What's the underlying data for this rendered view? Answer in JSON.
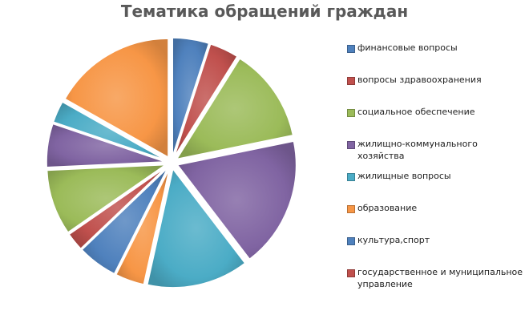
{
  "chart_data": {
    "type": "pie",
    "title": "Тематика обращений граждан",
    "exploded": true,
    "legend_position": "right",
    "start_angle_deg": 90,
    "series": [
      {
        "name": "финансовые вопросы",
        "color": "#4f81bd"
      },
      {
        "name": "вопросы здравоохранения",
        "color": "#c0504d"
      },
      {
        "name": "социальное обеспечение",
        "color": "#9bbb59"
      },
      {
        "name": "жилищно-коммунального хозяйства",
        "color": "#8064a2"
      },
      {
        "name": "жилищные вопросы",
        "color": "#4bacc6"
      },
      {
        "name": "образование",
        "color": "#f79646"
      },
      {
        "name": "культура,спорт",
        "color": "#4f81bd"
      },
      {
        "name": "государственное и муниципальное управление",
        "color": "#c0504d"
      }
    ],
    "slices": [
      {
        "series": 0,
        "value": 5
      },
      {
        "series": 1,
        "value": 4
      },
      {
        "series": 2,
        "value": 13
      },
      {
        "series": 3,
        "value": 18
      },
      {
        "series": 4,
        "value": 14
      },
      {
        "series": 5,
        "value": 4
      },
      {
        "series": 6,
        "value": 5.5
      },
      {
        "series": 7,
        "value": 2.5
      },
      {
        "series": 2,
        "value": 9
      },
      {
        "series": 3,
        "value": 6
      },
      {
        "series": 4,
        "value": 3
      },
      {
        "series": 5,
        "value": 17
      }
    ]
  }
}
